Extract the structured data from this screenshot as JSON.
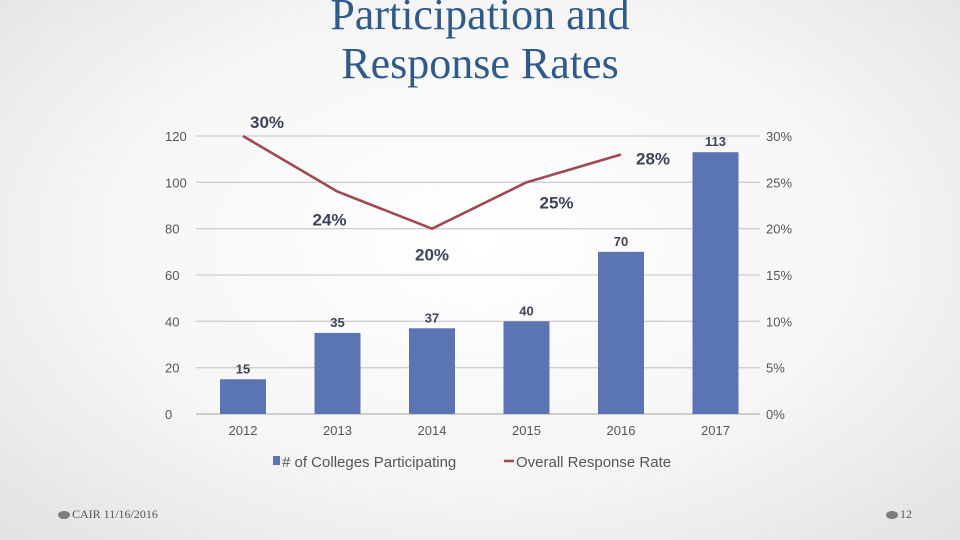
{
  "slide": {
    "title_line1": "Participation and",
    "title_line2": "Response Rates",
    "footer_left": "CAIR 11/16/2016",
    "page_number": "12"
  },
  "colors": {
    "bar": "#5b74b4",
    "line": "#9e4a52",
    "title": "#2f5a89"
  },
  "chart_data": {
    "type": "bar",
    "categories": [
      "2012",
      "2013",
      "2014",
      "2015",
      "2016",
      "2017"
    ],
    "series": [
      {
        "name": "# of Colleges Participating",
        "type": "bar",
        "axis": "left",
        "values": [
          15,
          35,
          37,
          40,
          70,
          113
        ],
        "labels": [
          "15",
          "35",
          "37",
          "40",
          "70",
          "113"
        ]
      },
      {
        "name": "Overall Response Rate",
        "type": "line",
        "axis": "right",
        "values": [
          30,
          24,
          20,
          25,
          28,
          null
        ],
        "labels": [
          "30%",
          "24%",
          "20%",
          "25%",
          "28%",
          ""
        ]
      }
    ],
    "y_left": {
      "ylim": [
        0,
        120
      ],
      "ticks": [
        "0",
        "20",
        "40",
        "60",
        "80",
        "100",
        "120"
      ]
    },
    "y_right": {
      "ylim": [
        0,
        30
      ],
      "ticks": [
        "0%",
        "5%",
        "10%",
        "15%",
        "20%",
        "25%",
        "30%"
      ]
    },
    "grid": true,
    "legend": "bottom"
  }
}
